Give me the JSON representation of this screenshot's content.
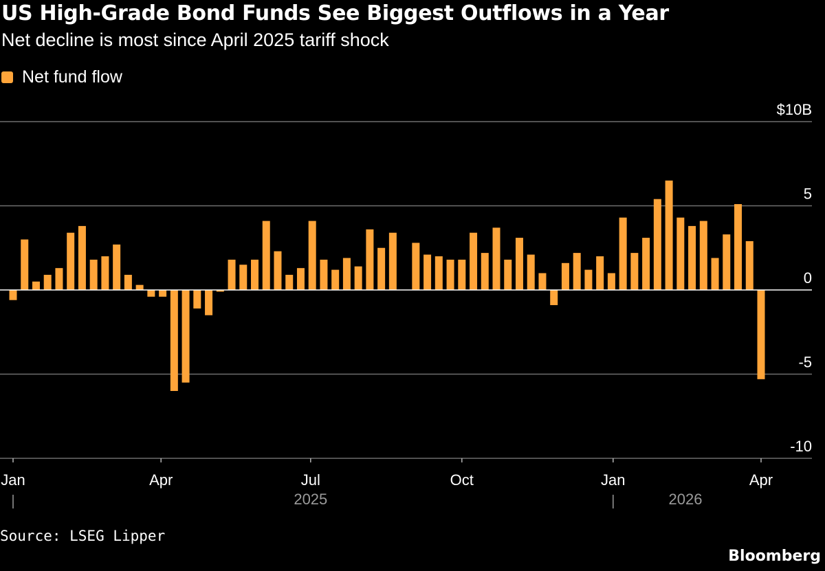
{
  "header": {
    "title": "US High-Grade Bond Funds See Biggest Outflows in a Year",
    "subtitle": "Net decline is most since April 2025 tariff shock"
  },
  "legend": {
    "label": "Net fund flow"
  },
  "footer": {
    "source": "Source: LSEG Lipper",
    "brand": "Bloomberg"
  },
  "colors": {
    "bar": "#ffa53a",
    "grid": "#6e6e6e",
    "axis": "#b4b4b4",
    "year_label": "#9a9a9a",
    "background": "#000000"
  },
  "chart_data": {
    "type": "bar",
    "title": "US High-Grade Bond Funds See Biggest Outflows in a Year",
    "subtitle": "Net decline is most since April 2025 tariff shock",
    "xlabel": "",
    "ylabel": "",
    "ylim": [
      -10,
      10
    ],
    "y_ticks": [
      {
        "value": 10,
        "label": "$10B"
      },
      {
        "value": 5,
        "label": "5"
      },
      {
        "value": 0,
        "label": "0"
      },
      {
        "value": -5,
        "label": "-5"
      },
      {
        "value": -10,
        "label": "-10"
      }
    ],
    "x_start": "2025-01-01",
    "x_end": "2026-05-10",
    "x_ticks": [
      {
        "date": "2025-01-01",
        "label": "Jan",
        "year": "2025"
      },
      {
        "date": "2025-04-01",
        "label": "Apr"
      },
      {
        "date": "2025-07-01",
        "label": "Jul"
      },
      {
        "date": "2025-10-01",
        "label": "Oct"
      },
      {
        "date": "2026-01-01",
        "label": "Jan",
        "year": "2026"
      },
      {
        "date": "2026-04-01",
        "label": "Apr"
      }
    ],
    "year_labels": [
      {
        "label": "2025",
        "date": "2025-07-01"
      },
      {
        "label": "2026",
        "date": "2026-02-14"
      }
    ],
    "series": [
      {
        "name": "Net fund flow",
        "points": [
          {
            "date": "2025-01-01",
            "value": -0.6
          },
          {
            "date": "2025-01-08",
            "value": 3.0
          },
          {
            "date": "2025-01-15",
            "value": 0.5
          },
          {
            "date": "2025-01-22",
            "value": 0.9
          },
          {
            "date": "2025-01-29",
            "value": 1.3
          },
          {
            "date": "2025-02-05",
            "value": 3.4
          },
          {
            "date": "2025-02-12",
            "value": 3.8
          },
          {
            "date": "2025-02-19",
            "value": 1.8
          },
          {
            "date": "2025-02-26",
            "value": 2.0
          },
          {
            "date": "2025-03-05",
            "value": 2.7
          },
          {
            "date": "2025-03-12",
            "value": 0.9
          },
          {
            "date": "2025-03-19",
            "value": 0.3
          },
          {
            "date": "2025-03-26",
            "value": -0.4
          },
          {
            "date": "2025-04-02",
            "value": -0.4
          },
          {
            "date": "2025-04-09",
            "value": -6.0
          },
          {
            "date": "2025-04-16",
            "value": -5.5
          },
          {
            "date": "2025-04-23",
            "value": -1.1
          },
          {
            "date": "2025-04-30",
            "value": -1.5
          },
          {
            "date": "2025-05-07",
            "value": -0.1
          },
          {
            "date": "2025-05-14",
            "value": 1.8
          },
          {
            "date": "2025-05-21",
            "value": 1.5
          },
          {
            "date": "2025-05-28",
            "value": 1.8
          },
          {
            "date": "2025-06-04",
            "value": 4.1
          },
          {
            "date": "2025-06-11",
            "value": 2.3
          },
          {
            "date": "2025-06-18",
            "value": 0.9
          },
          {
            "date": "2025-06-25",
            "value": 1.3
          },
          {
            "date": "2025-07-02",
            "value": 4.1
          },
          {
            "date": "2025-07-09",
            "value": 1.8
          },
          {
            "date": "2025-07-16",
            "value": 1.2
          },
          {
            "date": "2025-07-23",
            "value": 1.9
          },
          {
            "date": "2025-07-30",
            "value": 1.4
          },
          {
            "date": "2025-08-06",
            "value": 3.6
          },
          {
            "date": "2025-08-13",
            "value": 2.5
          },
          {
            "date": "2025-08-20",
            "value": 3.4
          },
          {
            "date": "2025-08-27",
            "value": 0
          },
          {
            "date": "2025-09-03",
            "value": 2.8
          },
          {
            "date": "2025-09-10",
            "value": 2.1
          },
          {
            "date": "2025-09-17",
            "value": 2.0
          },
          {
            "date": "2025-09-24",
            "value": 1.8
          },
          {
            "date": "2025-10-01",
            "value": 1.8
          },
          {
            "date": "2025-10-08",
            "value": 3.4
          },
          {
            "date": "2025-10-15",
            "value": 2.2
          },
          {
            "date": "2025-10-22",
            "value": 3.7
          },
          {
            "date": "2025-10-29",
            "value": 1.8
          },
          {
            "date": "2025-11-05",
            "value": 3.1
          },
          {
            "date": "2025-11-12",
            "value": 2.1
          },
          {
            "date": "2025-11-19",
            "value": 1.0
          },
          {
            "date": "2025-11-26",
            "value": -0.9
          },
          {
            "date": "2025-12-03",
            "value": 1.6
          },
          {
            "date": "2025-12-10",
            "value": 2.2
          },
          {
            "date": "2025-12-17",
            "value": 1.2
          },
          {
            "date": "2025-12-24",
            "value": 2.0
          },
          {
            "date": "2025-12-31",
            "value": 1.0
          },
          {
            "date": "2026-01-07",
            "value": 4.3
          },
          {
            "date": "2026-01-14",
            "value": 2.2
          },
          {
            "date": "2026-01-21",
            "value": 3.1
          },
          {
            "date": "2026-01-28",
            "value": 5.4
          },
          {
            "date": "2026-02-04",
            "value": 6.5
          },
          {
            "date": "2026-02-11",
            "value": 4.3
          },
          {
            "date": "2026-02-18",
            "value": 3.8
          },
          {
            "date": "2026-02-25",
            "value": 4.1
          },
          {
            "date": "2026-03-04",
            "value": 1.9
          },
          {
            "date": "2026-03-11",
            "value": 3.3
          },
          {
            "date": "2026-03-18",
            "value": 5.1
          },
          {
            "date": "2026-03-25",
            "value": 2.9
          },
          {
            "date": "2026-04-01",
            "value": -5.3
          }
        ]
      }
    ]
  }
}
